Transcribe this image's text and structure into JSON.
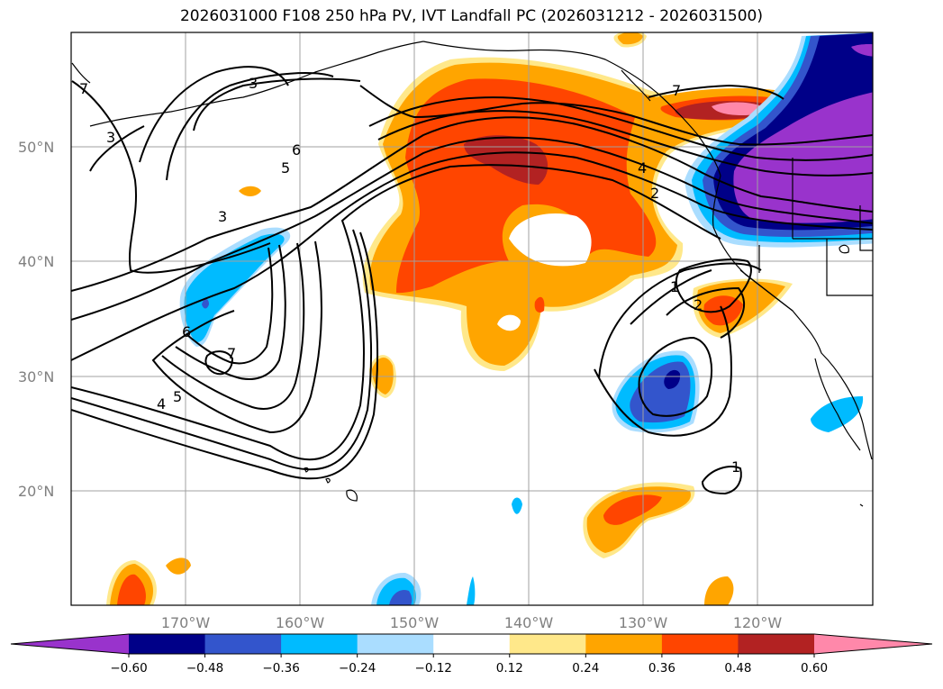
{
  "chart_data": {
    "type": "contour_map",
    "title": "2026031000 F108 250 hPa PV, IVT Landfall PC (2026031212 - 2026031500)",
    "lon_ticks": [
      "170°W",
      "160°W",
      "150°W",
      "140°W",
      "130°W",
      "120°W"
    ],
    "lat_ticks": [
      "50°N",
      "40°N",
      "30°N",
      "20°N"
    ],
    "lon_range": [
      -180,
      -110
    ],
    "lat_range": [
      10,
      60
    ],
    "grid": true,
    "pv_contour_levels": [
      1,
      2,
      3,
      4,
      5,
      6,
      7
    ],
    "pv_contour_labels": [
      "7",
      "3",
      "6",
      "5",
      "3",
      "6",
      "7",
      "4",
      "5",
      "4",
      "2",
      "7",
      "1",
      "2",
      "1",
      "3"
    ],
    "shading_colorbar": {
      "boundaries": [
        "−0.60",
        "−0.48",
        "−0.36",
        "−0.24",
        "−0.12",
        "0.12",
        "0.24",
        "0.36",
        "0.48",
        "0.60"
      ],
      "extend": "both",
      "colors": [
        "#9933cc",
        "#000088",
        "#3355cc",
        "#00bbff",
        "#aaddff",
        "#ffffff",
        "#ffe88a",
        "#ffa500",
        "#ff4500",
        "#b22222",
        "#ff88aa"
      ]
    },
    "regions": [
      {
        "sign": "positive",
        "max_value": 0.6,
        "lon": [
          -155,
          -125
        ],
        "lat": [
          36,
          55
        ]
      },
      {
        "sign": "positive",
        "max_value": 0.6,
        "lon": [
          -130,
          -122
        ],
        "lat": [
          51,
          55
        ]
      },
      {
        "sign": "positive",
        "max_value": 0.36,
        "lon": [
          -127,
          -120
        ],
        "lat": [
          33,
          38
        ]
      },
      {
        "sign": "positive",
        "max_value": 0.36,
        "lon": [
          -133,
          -123
        ],
        "lat": [
          15,
          20
        ]
      },
      {
        "sign": "negative",
        "min_value": -0.6,
        "lon": [
          -125,
          -110
        ],
        "lat": [
          44,
          60
        ]
      },
      {
        "sign": "negative",
        "min_value": -0.48,
        "lon": [
          -134,
          -126
        ],
        "lat": [
          26,
          32
        ]
      },
      {
        "sign": "negative",
        "min_value": -0.36,
        "lon": [
          -169,
          -164
        ],
        "lat": [
          33,
          42
        ]
      }
    ]
  }
}
